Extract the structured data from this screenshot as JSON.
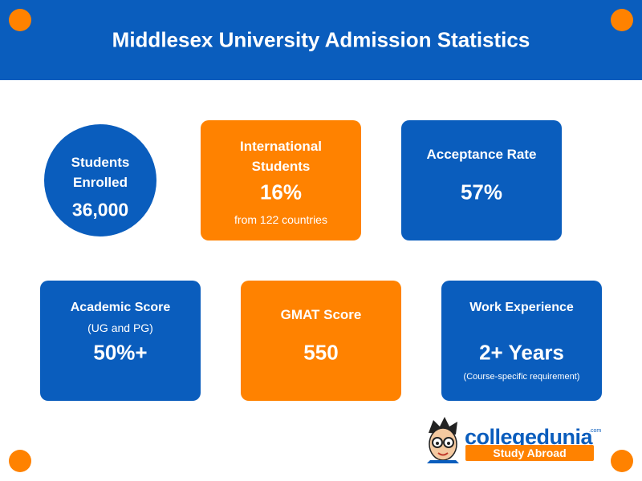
{
  "header": {
    "title": "Middlesex University Admission Statistics"
  },
  "cards": [
    {
      "title": "Students Enrolled",
      "value": "36,000"
    },
    {
      "title": "International Students",
      "value": "16%",
      "note": "from 122 countries"
    },
    {
      "title": "Acceptance Rate",
      "value": "57%"
    },
    {
      "title": "Academic Score",
      "subtitle": "(UG and PG)",
      "value": "50%+"
    },
    {
      "title": "GMAT Score",
      "value": "550"
    },
    {
      "title": "Work Experience",
      "value": "2+ Years",
      "note": "(Course-specific requirement)"
    }
  ],
  "logo": {
    "name": "collegedunia",
    "domain": ".com",
    "tagline": "Study Abroad"
  }
}
